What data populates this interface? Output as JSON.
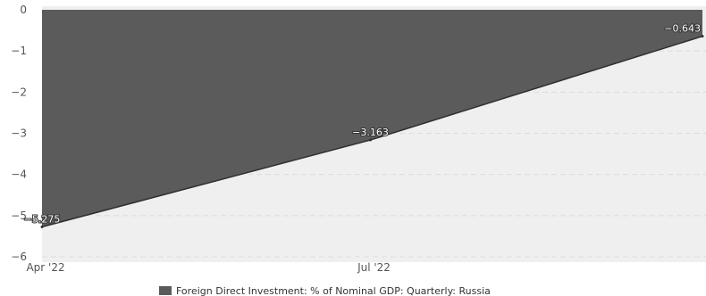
{
  "chart_data": {
    "type": "area",
    "x": [
      "2022-03-31",
      "2022-06-30",
      "2022-09-30"
    ],
    "xticks": [
      {
        "label": "Apr '22",
        "date": "2022-04-01"
      },
      {
        "label": "Jul '22",
        "date": "2022-07-01"
      }
    ],
    "ylim": [
      -6,
      0
    ],
    "yticks": [
      0,
      -1,
      -2,
      -3,
      -4,
      -5,
      -6
    ],
    "grid": true,
    "legend_position": "bottom-center",
    "series": [
      {
        "name": "Foreign Direct Investment: % of Nominal GDP: Quarterly: Russia",
        "values": [
          -5.275,
          -3.163,
          -0.643
        ],
        "labels": [
          "-5.275",
          "-3.163",
          "-0.643"
        ],
        "color": "#5b5b5b"
      }
    ],
    "colors": {
      "plot_background": "#efefef",
      "area_fill": "#5b5b5b",
      "area_line": "#2f2f2f",
      "grid": "#dcdcdc",
      "axis_text": "#555555"
    }
  }
}
